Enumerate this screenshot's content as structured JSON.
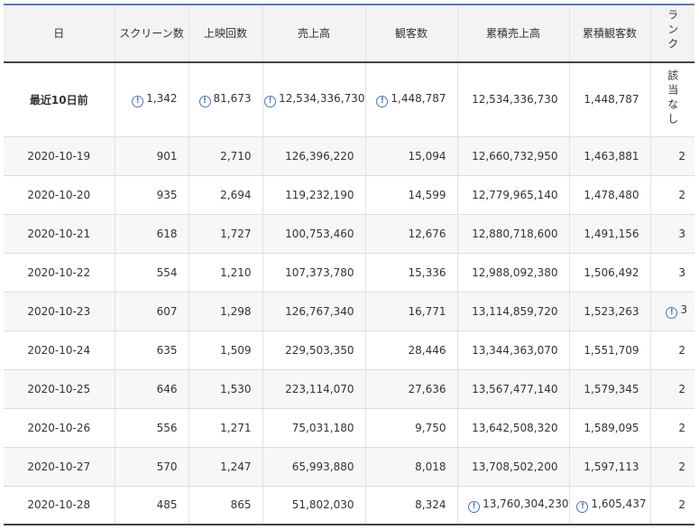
{
  "headers": [
    "日",
    "スクリーン数",
    "上映回数",
    "売上高",
    "観客数",
    "累積売上高",
    "累積観客数",
    "ランク"
  ],
  "rows": [
    {
      "date": "最近10日前",
      "screens": "1,342",
      "shows": "81,673",
      "sales": "12,534,336,730",
      "audience": "1,448,787",
      "cum_sales": "12,534,336,730",
      "cum_audience": "1,448,787",
      "rank": "該当なし"
    },
    {
      "date": "2020-10-19",
      "screens": "901",
      "shows": "2,710",
      "sales": "126,396,220",
      "audience": "15,094",
      "cum_sales": "12,660,732,950",
      "cum_audience": "1,463,881",
      "rank": "2"
    },
    {
      "date": "2020-10-20",
      "screens": "935",
      "shows": "2,694",
      "sales": "119,232,190",
      "audience": "14,599",
      "cum_sales": "12,779,965,140",
      "cum_audience": "1,478,480",
      "rank": "2"
    },
    {
      "date": "2020-10-21",
      "screens": "618",
      "shows": "1,727",
      "sales": "100,753,460",
      "audience": "12,676",
      "cum_sales": "12,880,718,600",
      "cum_audience": "1,491,156",
      "rank": "3"
    },
    {
      "date": "2020-10-22",
      "screens": "554",
      "shows": "1,210",
      "sales": "107,373,780",
      "audience": "15,336",
      "cum_sales": "12,988,092,380",
      "cum_audience": "1,506,492",
      "rank": "3"
    },
    {
      "date": "2020-10-23",
      "screens": "607",
      "shows": "1,298",
      "sales": "126,767,340",
      "audience": "16,771",
      "cum_sales": "13,114,859,720",
      "cum_audience": "1,523,263",
      "rank": "3"
    },
    {
      "date": "2020-10-24",
      "screens": "635",
      "shows": "1,509",
      "sales": "229,503,350",
      "audience": "28,446",
      "cum_sales": "13,344,363,070",
      "cum_audience": "1,551,709",
      "rank": "2"
    },
    {
      "date": "2020-10-25",
      "screens": "646",
      "shows": "1,530",
      "sales": "223,114,070",
      "audience": "27,636",
      "cum_sales": "13,567,477,140",
      "cum_audience": "1,579,345",
      "rank": "2"
    },
    {
      "date": "2020-10-26",
      "screens": "556",
      "shows": "1,271",
      "sales": "75,031,180",
      "audience": "9,750",
      "cum_sales": "13,642,508,320",
      "cum_audience": "1,589,095",
      "rank": "2"
    },
    {
      "date": "2020-10-27",
      "screens": "570",
      "shows": "1,247",
      "sales": "65,993,880",
      "audience": "8,018",
      "cum_sales": "13,708,502,200",
      "cum_audience": "1,597,113",
      "rank": "2"
    },
    {
      "date": "2020-10-28",
      "screens": "485",
      "shows": "865",
      "sales": "51,802,030",
      "audience": "8,324",
      "cum_sales": "13,760,304,230",
      "cum_audience": "1,605,437",
      "rank": "2"
    }
  ],
  "info_icon_glyph": "!",
  "accent_color": "#4a72c4"
}
